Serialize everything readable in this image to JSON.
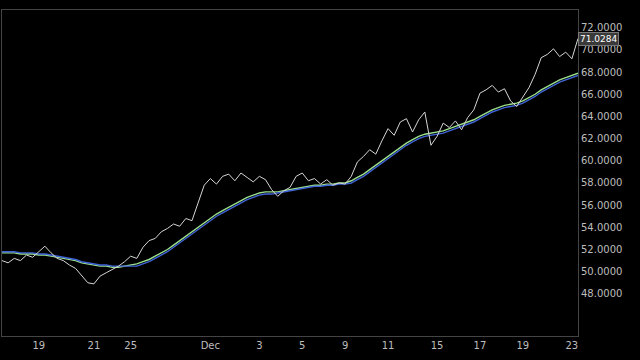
{
  "chart_data": {
    "type": "line",
    "categories": [
      null,
      null,
      null,
      null,
      null,
      null,
      "19",
      null,
      null,
      null,
      null,
      null,
      null,
      null,
      null,
      "21",
      null,
      null,
      null,
      null,
      null,
      "25",
      null,
      null,
      null,
      null,
      null,
      null,
      null,
      null,
      null,
      null,
      null,
      null,
      "Dec",
      null,
      null,
      null,
      null,
      null,
      null,
      null,
      "3",
      null,
      null,
      null,
      null,
      null,
      null,
      "5",
      null,
      null,
      null,
      null,
      null,
      null,
      "9",
      null,
      null,
      null,
      null,
      null,
      null,
      "11",
      null,
      null,
      null,
      null,
      null,
      null,
      null,
      "15",
      null,
      null,
      null,
      null,
      null,
      null,
      "17",
      null,
      null,
      null,
      null,
      null,
      null,
      "19",
      null,
      null,
      null,
      null,
      null,
      null,
      null,
      "23",
      null
    ],
    "series": [
      {
        "color": "#d6d6d6",
        "values": [
          51.0,
          50.8,
          51.2,
          51.0,
          51.5,
          51.3,
          51.8,
          52.3,
          51.7,
          51.2,
          51.0,
          50.6,
          50.3,
          49.6,
          49.0,
          48.9,
          49.6,
          49.9,
          50.2,
          50.5,
          50.9,
          51.4,
          51.2,
          52.2,
          52.8,
          53.0,
          53.6,
          53.9,
          54.3,
          54.1,
          54.8,
          54.6,
          56.2,
          57.8,
          58.4,
          57.9,
          58.6,
          58.8,
          58.2,
          58.9,
          58.5,
          58.1,
          58.6,
          58.3,
          57.4,
          56.8,
          57.3,
          57.6,
          58.6,
          58.9,
          58.2,
          58.4,
          57.9,
          58.3,
          57.8,
          58.0,
          57.9,
          58.6,
          59.9,
          60.4,
          61.0,
          60.6,
          61.8,
          62.9,
          62.3,
          63.5,
          63.8,
          62.6,
          63.7,
          64.4,
          61.4,
          62.2,
          63.4,
          63.0,
          63.6,
          62.8,
          63.9,
          64.6,
          66.1,
          66.4,
          66.8,
          66.2,
          66.5,
          65.4,
          64.9,
          65.8,
          66.6,
          67.8,
          69.3,
          69.6,
          70.1,
          69.4,
          69.8,
          69.2,
          71.0284
        ]
      },
      {
        "color": "#9be08a",
        "values": [
          51.7,
          51.7,
          51.7,
          51.6,
          51.6,
          51.6,
          51.5,
          51.5,
          51.4,
          51.3,
          51.2,
          51.1,
          51.0,
          50.8,
          50.7,
          50.6,
          50.5,
          50.5,
          50.4,
          50.4,
          50.5,
          50.6,
          50.7,
          50.9,
          51.1,
          51.4,
          51.7,
          52.0,
          52.4,
          52.8,
          53.2,
          53.6,
          54.0,
          54.4,
          54.8,
          55.2,
          55.5,
          55.8,
          56.1,
          56.4,
          56.7,
          56.9,
          57.1,
          57.2,
          57.2,
          57.2,
          57.3,
          57.4,
          57.5,
          57.6,
          57.7,
          57.8,
          57.8,
          57.9,
          57.9,
          58.0,
          58.0,
          58.2,
          58.5,
          58.8,
          59.2,
          59.6,
          60.0,
          60.4,
          60.8,
          61.2,
          61.6,
          61.9,
          62.2,
          62.4,
          62.5,
          62.6,
          62.7,
          62.9,
          63.1,
          63.3,
          63.5,
          63.7,
          64.0,
          64.3,
          64.6,
          64.8,
          65.0,
          65.1,
          65.2,
          65.4,
          65.7,
          66.0,
          66.4,
          66.7,
          67.0,
          67.3,
          67.5,
          67.7,
          67.9
        ]
      },
      {
        "color": "#3f63d6",
        "values": [
          51.8,
          51.8,
          51.8,
          51.7,
          51.7,
          51.7,
          51.6,
          51.6,
          51.5,
          51.4,
          51.3,
          51.2,
          51.1,
          50.9,
          50.8,
          50.7,
          50.6,
          50.6,
          50.5,
          50.5,
          50.5,
          50.5,
          50.5,
          50.7,
          50.9,
          51.2,
          51.5,
          51.8,
          52.2,
          52.6,
          53.0,
          53.4,
          53.8,
          54.2,
          54.6,
          55.0,
          55.3,
          55.6,
          55.9,
          56.2,
          56.5,
          56.7,
          56.9,
          57.0,
          57.0,
          57.1,
          57.2,
          57.3,
          57.4,
          57.5,
          57.6,
          57.7,
          57.7,
          57.8,
          57.8,
          57.9,
          57.9,
          58.0,
          58.3,
          58.6,
          59.0,
          59.4,
          59.8,
          60.2,
          60.6,
          61.0,
          61.4,
          61.7,
          62.0,
          62.2,
          62.3,
          62.4,
          62.5,
          62.7,
          62.9,
          63.1,
          63.3,
          63.5,
          63.8,
          64.1,
          64.4,
          64.6,
          64.8,
          64.9,
          65.0,
          65.2,
          65.5,
          65.8,
          66.2,
          66.5,
          66.8,
          67.1,
          67.3,
          67.5,
          67.7
        ]
      }
    ],
    "ylim": [
      44.2,
      73.6
    ],
    "yticks": [
      {
        "value": 48,
        "label": "48.0000"
      },
      {
        "value": 50,
        "label": "50.0000"
      },
      {
        "value": 52,
        "label": "52.0000"
      },
      {
        "value": 54,
        "label": "54.0000"
      },
      {
        "value": 56,
        "label": "56.0000"
      },
      {
        "value": 58,
        "label": "58.0000"
      },
      {
        "value": 60,
        "label": "60.0000"
      },
      {
        "value": 62,
        "label": "62.0000"
      },
      {
        "value": 64,
        "label": "64.0000"
      },
      {
        "value": 66,
        "label": "66.0000"
      },
      {
        "value": 68,
        "label": "68.0000"
      },
      {
        "value": 70,
        "label": "70.0000"
      },
      {
        "value": 72,
        "label": "72.0000"
      }
    ],
    "annotations": [
      {
        "text": "71.0284",
        "y": 71.0284
      }
    ],
    "grid": false
  }
}
